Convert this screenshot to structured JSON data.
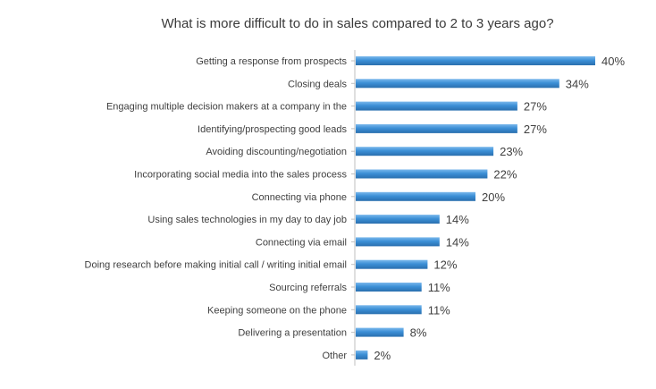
{
  "chart_data": {
    "type": "bar",
    "orientation": "horizontal",
    "title": "What is more difficult to do in sales compared to 2 to 3 years ago?",
    "categories": [
      "Getting a response from prospects",
      "Closing deals",
      "Engaging multiple decision makers at a company in the",
      "Identifying/prospecting good leads",
      "Avoiding discounting/negotiation",
      "Incorporating social media into the sales process",
      "Connecting via phone",
      "Using sales technologies in my day to day job",
      "Connecting via email",
      "Doing research before making initial call / writing initial email",
      "Sourcing referrals",
      "Keeping someone on the phone",
      "Delivering a presentation",
      "Other"
    ],
    "values": [
      40,
      34,
      27,
      27,
      23,
      22,
      20,
      14,
      14,
      12,
      11,
      11,
      8,
      2
    ],
    "value_labels": [
      "40%",
      "34%",
      "27%",
      "27%",
      "23%",
      "22%",
      "20%",
      "14%",
      "14%",
      "12%",
      "11%",
      "11%",
      "8%",
      "2%"
    ],
    "xlim": [
      0,
      40
    ],
    "grid": false,
    "legend": "none",
    "colors": {
      "bar": "#3b8fd6",
      "bar_light": "#7ab8ec",
      "bar_dark": "#2a6fae"
    }
  }
}
